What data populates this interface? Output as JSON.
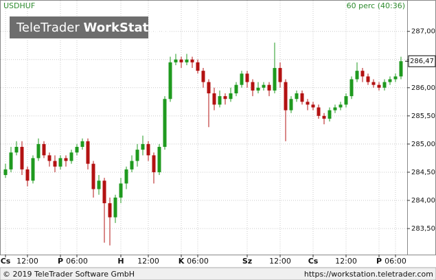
{
  "chart_data": {
    "type": "candlestick",
    "symbol": "USDHUF",
    "interval": "60 perc (40:36)",
    "logo_brand": "TeleTrader",
    "logo_product": "WorkStation",
    "footer_left": "© 2019 TeleTrader Software GmbH",
    "footer_right": "https://workstation.teletrader.com",
    "up_color": "#1f9a1f",
    "down_color": "#b31212",
    "grid": true,
    "ylim": [
      283.05,
      287.52
    ],
    "yticks": [
      {
        "value": 283.5,
        "label": "283,50"
      },
      {
        "value": 284,
        "label": "284,00"
      },
      {
        "value": 284.5,
        "label": "284,50"
      },
      {
        "value": 285,
        "label": "285,00"
      },
      {
        "value": 285.5,
        "label": "285,50"
      },
      {
        "value": 286,
        "label": "286,00"
      },
      {
        "value": 286.5,
        "label": "286,50"
      },
      {
        "value": 287,
        "label": "287,00"
      }
    ],
    "last_price": {
      "value": 286.47,
      "label": "286,47"
    },
    "categories": [
      "Cs",
      null,
      null,
      null,
      "12:00",
      null,
      null,
      null,
      null,
      null,
      "P",
      null,
      null,
      "06:00",
      null,
      null,
      null,
      null,
      null,
      null,
      null,
      "H",
      null,
      null,
      null,
      null,
      "12:00",
      null,
      null,
      null,
      null,
      null,
      "K",
      null,
      null,
      "06:00",
      null,
      null,
      null,
      null,
      null,
      null,
      null,
      null,
      "Sz",
      null,
      null,
      null,
      null,
      null,
      "12:00",
      null,
      null,
      null,
      null,
      null,
      "Cs",
      null,
      null,
      null,
      null,
      null,
      "12:00",
      null,
      null,
      null,
      null,
      null,
      "P",
      null,
      null,
      "06:00",
      null
    ],
    "open": [
      284.45,
      284.55,
      284.85,
      284.95,
      284.55,
      284.35,
      284.75,
      285.0,
      284.8,
      284.7,
      284.6,
      284.75,
      284.7,
      284.85,
      284.95,
      285.05,
      284.65,
      284.2,
      284.35,
      283.95,
      283.7,
      284.05,
      284.3,
      284.55,
      284.7,
      284.9,
      285.0,
      284.8,
      284.5,
      284.95,
      285.8,
      286.45,
      286.5,
      286.45,
      286.5,
      286.45,
      286.3,
      286.1,
      285.9,
      285.7,
      285.85,
      285.8,
      285.9,
      286.05,
      286.25,
      286.1,
      285.95,
      286.0,
      286.05,
      285.95,
      286.35,
      286.1,
      285.6,
      285.8,
      285.9,
      285.75,
      285.7,
      285.65,
      285.5,
      285.45,
      285.6,
      285.65,
      285.7,
      285.85,
      286.15,
      286.3,
      286.2,
      286.1,
      286.05,
      286.0,
      286.1,
      286.15,
      286.2
    ],
    "high": [
      284.65,
      284.95,
      285.05,
      285.05,
      284.6,
      284.8,
      285.1,
      285.05,
      284.85,
      284.8,
      284.8,
      284.8,
      284.9,
      285.0,
      285.1,
      285.1,
      284.7,
      284.45,
      284.4,
      284.05,
      284.1,
      284.4,
      284.6,
      284.8,
      285.0,
      285.15,
      285.05,
      284.85,
      285.0,
      285.85,
      286.55,
      286.6,
      286.55,
      286.6,
      286.55,
      286.5,
      286.35,
      286.15,
      286.0,
      285.95,
      285.9,
      286.0,
      286.1,
      286.3,
      286.3,
      286.15,
      286.1,
      286.1,
      286.1,
      286.8,
      286.45,
      286.15,
      285.85,
      285.95,
      285.95,
      285.8,
      285.75,
      285.7,
      285.55,
      285.65,
      285.7,
      285.75,
      285.9,
      286.2,
      286.45,
      286.35,
      286.25,
      286.15,
      286.1,
      286.15,
      286.2,
      286.25,
      286.55
    ],
    "low": [
      284.4,
      284.5,
      284.8,
      284.45,
      284.25,
      284.3,
      284.7,
      284.75,
      284.6,
      284.5,
      284.55,
      284.6,
      284.65,
      284.8,
      284.9,
      284.55,
      284.05,
      284.1,
      283.25,
      283.2,
      283.6,
      283.95,
      284.2,
      284.5,
      284.6,
      284.8,
      284.7,
      284.3,
      284.45,
      284.9,
      285.75,
      286.4,
      286.35,
      286.4,
      286.35,
      286.25,
      286.0,
      285.3,
      285.6,
      285.65,
      285.7,
      285.75,
      285.85,
      286.0,
      286.0,
      285.85,
      285.9,
      285.95,
      285.85,
      285.9,
      286.0,
      285.05,
      285.55,
      285.75,
      285.7,
      285.6,
      285.6,
      285.45,
      285.35,
      285.4,
      285.55,
      285.6,
      285.65,
      285.8,
      286.1,
      286.1,
      286.05,
      286.0,
      285.95,
      285.95,
      286.05,
      286.1,
      286.15
    ],
    "close": [
      284.55,
      284.85,
      284.95,
      284.55,
      284.35,
      284.75,
      285.0,
      284.8,
      284.7,
      284.6,
      284.75,
      284.7,
      284.85,
      284.95,
      285.05,
      284.65,
      284.2,
      284.35,
      283.95,
      283.7,
      284.05,
      284.3,
      284.55,
      284.7,
      284.9,
      285.0,
      284.8,
      284.5,
      284.95,
      285.8,
      286.45,
      286.5,
      286.45,
      286.5,
      286.45,
      286.3,
      286.1,
      285.9,
      285.7,
      285.85,
      285.8,
      285.9,
      286.05,
      286.25,
      286.1,
      285.95,
      286.0,
      286.05,
      285.95,
      286.35,
      286.1,
      285.6,
      285.8,
      285.9,
      285.75,
      285.7,
      285.65,
      285.5,
      285.45,
      285.6,
      285.65,
      285.7,
      285.85,
      286.15,
      286.3,
      286.2,
      286.1,
      286.05,
      286.0,
      286.1,
      286.15,
      286.2,
      286.47
    ]
  }
}
